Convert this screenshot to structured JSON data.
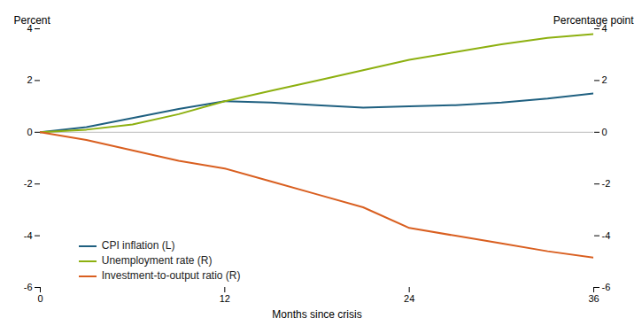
{
  "chart_data": {
    "type": "line",
    "x": [
      0,
      3,
      6,
      9,
      12,
      15,
      18,
      21,
      24,
      27,
      30,
      33,
      36
    ],
    "xlabel": "Months since crisis",
    "ylabel": "Percent",
    "y2label": "Percentage point",
    "series": [
      {
        "name": "CPI inflation (L)",
        "color": "#1f6080",
        "values": [
          0.0,
          0.2,
          0.55,
          0.9,
          1.2,
          1.15,
          1.05,
          0.95,
          1.0,
          1.05,
          1.15,
          1.3,
          1.5
        ]
      },
      {
        "name": "Unemployment rate (R)",
        "color": "#8db010",
        "axis": "y2",
        "values": [
          0.0,
          0.1,
          0.3,
          0.7,
          1.2,
          1.6,
          2.0,
          2.4,
          2.8,
          3.1,
          3.4,
          3.65,
          3.8
        ]
      },
      {
        "name": "Investment-to-output ratio (R)",
        "color": "#d95f20",
        "axis": "y2",
        "values": [
          0.0,
          -0.3,
          -0.7,
          -1.1,
          -1.4,
          -1.9,
          -2.4,
          -2.9,
          -3.7,
          -4.0,
          -4.3,
          -4.6,
          -4.85
        ]
      }
    ],
    "xlim": [
      0,
      36
    ],
    "xticks": [
      0,
      12,
      24,
      36
    ],
    "ylim": [
      -6,
      4
    ],
    "yticks": [
      -6,
      -4,
      -2,
      0,
      2,
      4
    ],
    "y2lim": [
      -6,
      4
    ],
    "y2ticks": [
      -6,
      -4,
      -2,
      0,
      2,
      4
    ],
    "legend": "lower left",
    "grid": false
  }
}
